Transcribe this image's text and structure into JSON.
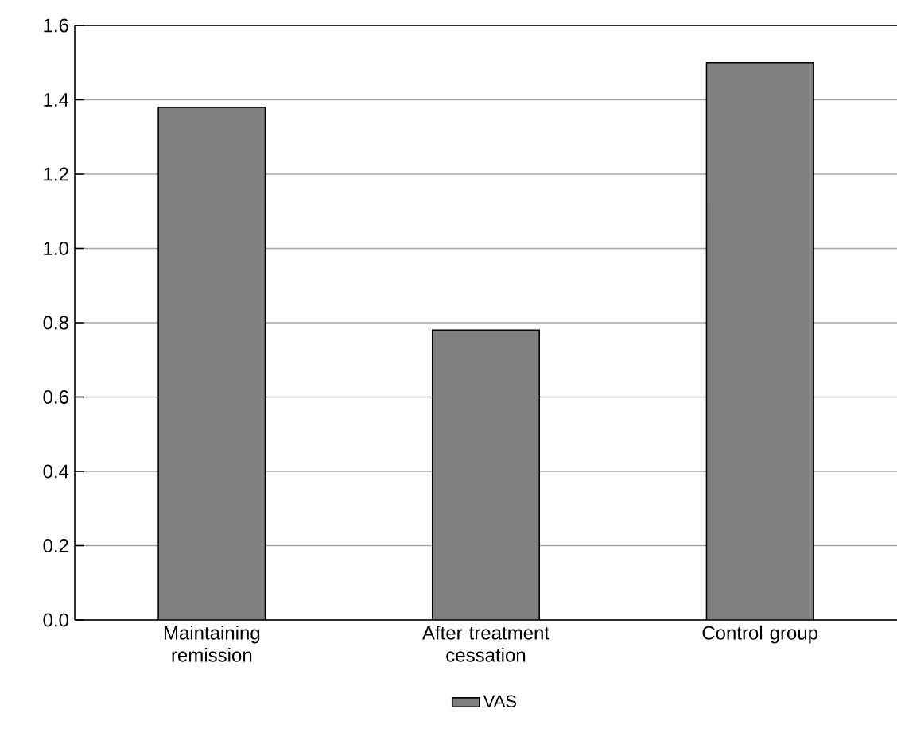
{
  "chart_data": {
    "type": "bar",
    "categories": [
      "Maintaining remission",
      "After treatment cessation",
      "Control group"
    ],
    "series": [
      {
        "name": "VAS",
        "color": "#808080",
        "values": [
          1.38,
          0.78,
          1.5
        ]
      }
    ],
    "ylim": [
      0,
      1.6
    ],
    "yticks": [
      {
        "value": 0,
        "label": "0.0"
      },
      0.2,
      0.4,
      0.6,
      0.8,
      {
        "value": 1,
        "label": "1.0"
      },
      1.2,
      1.4,
      1.6
    ],
    "grid": "y",
    "legend": "bottom"
  }
}
